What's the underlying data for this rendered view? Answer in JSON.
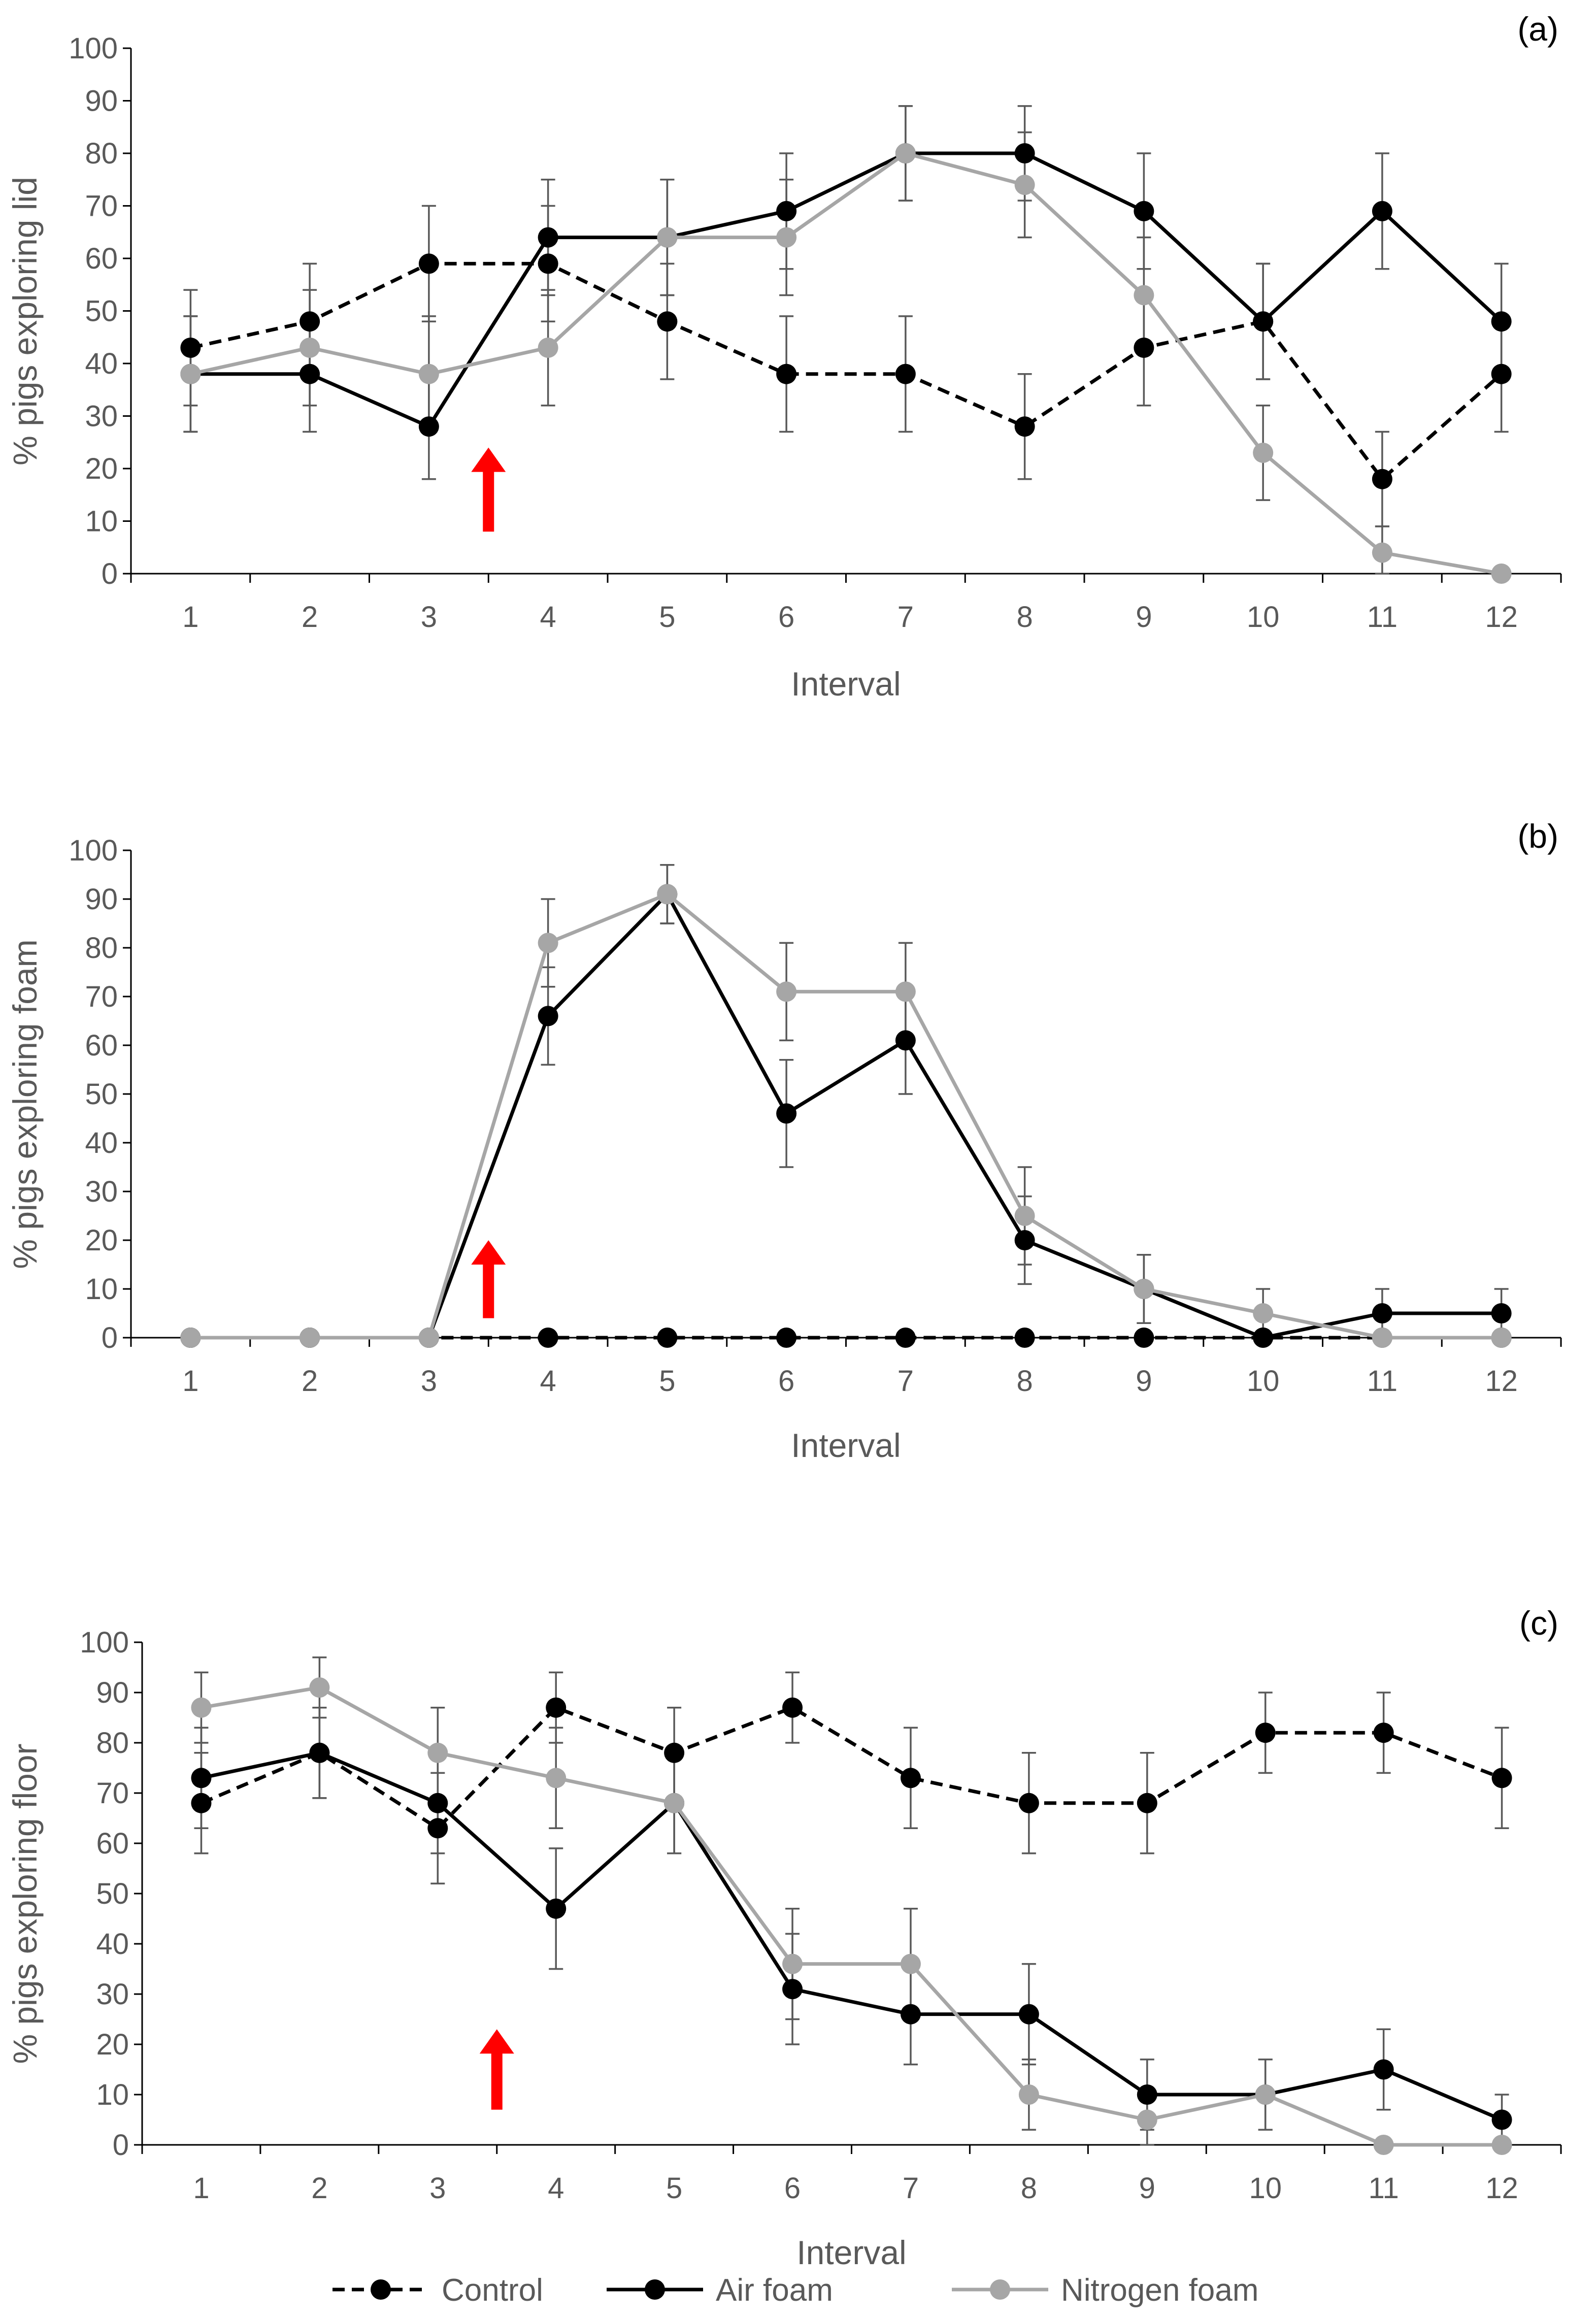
{
  "legend": [
    {
      "key": "control",
      "label": "Control"
    },
    {
      "key": "air",
      "label": "Air foam"
    },
    {
      "key": "nitrogen",
      "label": "Nitrogen foam"
    }
  ],
  "styles": {
    "control": {
      "color": "#000000",
      "dash": true
    },
    "air": {
      "color": "#000000",
      "dash": false
    },
    "nitrogen": {
      "color": "#a6a6a6",
      "dash": false
    },
    "errorbar_color": "#595959",
    "axis_color": "#000000",
    "arrow_color": "#ff0000"
  },
  "chart_data": [
    {
      "type": "line",
      "panel_label": "(a)",
      "title": "",
      "xlabel": "Interval",
      "ylabel": "%  pigs exploring lid",
      "categories": [
        "1",
        "2",
        "3",
        "4",
        "5",
        "6",
        "7",
        "8",
        "9",
        "10",
        "11",
        "12"
      ],
      "yticks": [
        "0",
        "10",
        "20",
        "30",
        "40",
        "50",
        "60",
        "70",
        "80",
        "90",
        "100"
      ],
      "ylim": [
        0,
        100
      ],
      "arrow_x": 3.5,
      "arrow_y": [
        8,
        24
      ],
      "series": [
        {
          "key": "control",
          "name": "Control",
          "values": [
            43,
            48,
            59,
            59,
            48,
            38,
            38,
            28,
            43,
            48,
            18,
            38
          ],
          "errors": [
            11,
            11,
            11,
            11,
            11,
            11,
            11,
            10,
            11,
            11,
            9,
            11
          ]
        },
        {
          "key": "air",
          "name": "Air foam",
          "values": [
            38,
            38,
            28,
            64,
            64,
            69,
            80,
            80,
            69,
            48,
            69,
            48
          ],
          "errors": [
            11,
            11,
            10,
            11,
            11,
            11,
            9,
            9,
            11,
            11,
            11,
            11
          ]
        },
        {
          "key": "nitrogen",
          "name": "Nitrogen foam",
          "values": [
            38,
            43,
            38,
            43,
            64,
            64,
            80,
            74,
            53,
            23,
            4,
            0
          ],
          "errors": [
            11,
            11,
            11,
            11,
            11,
            11,
            9,
            10,
            11,
            9,
            5,
            0
          ]
        }
      ]
    },
    {
      "type": "line",
      "panel_label": "(b)",
      "title": "",
      "xlabel": "Interval",
      "ylabel": "% pigs exploring foam",
      "categories": [
        "1",
        "2",
        "3",
        "4",
        "5",
        "6",
        "7",
        "8",
        "9",
        "10",
        "11",
        "12"
      ],
      "yticks": [
        "0",
        "10",
        "20",
        "30",
        "40",
        "50",
        "60",
        "70",
        "80",
        "90",
        "100"
      ],
      "ylim": [
        0,
        100
      ],
      "arrow_x": 3.5,
      "arrow_y": [
        4,
        20
      ],
      "series": [
        {
          "key": "control",
          "name": "Control",
          "values": [
            0,
            0,
            0,
            0,
            0,
            0,
            0,
            0,
            0,
            0,
            0,
            0
          ],
          "errors": [
            0,
            0,
            0,
            0,
            0,
            0,
            0,
            0,
            0,
            0,
            0,
            0
          ]
        },
        {
          "key": "air",
          "name": "Air foam",
          "values": [
            0,
            0,
            0,
            66,
            91,
            46,
            61,
            20,
            10,
            0,
            5,
            5
          ],
          "errors": [
            0,
            0,
            0,
            10,
            6,
            11,
            11,
            9,
            7,
            0,
            5,
            5
          ]
        },
        {
          "key": "nitrogen",
          "name": "Nitrogen foam",
          "values": [
            0,
            0,
            0,
            81,
            91,
            71,
            71,
            25,
            10,
            5,
            0,
            0
          ],
          "errors": [
            0,
            0,
            0,
            9,
            6,
            10,
            10,
            10,
            7,
            5,
            0,
            0
          ]
        }
      ]
    },
    {
      "type": "line",
      "panel_label": "(c)",
      "title": "",
      "xlabel": "Interval",
      "ylabel": "% pigs exploring floor",
      "categories": [
        "1",
        "2",
        "3",
        "4",
        "5",
        "6",
        "7",
        "8",
        "9",
        "10",
        "11",
        "12"
      ],
      "yticks": [
        "0",
        "10",
        "20",
        "30",
        "40",
        "50",
        "60",
        "70",
        "80",
        "90",
        "100"
      ],
      "ylim": [
        0,
        100
      ],
      "arrow_x": 3.5,
      "arrow_y": [
        7,
        23
      ],
      "series": [
        {
          "key": "control",
          "name": "Control",
          "values": [
            68,
            78,
            63,
            87,
            78,
            87,
            73,
            68,
            68,
            82,
            82,
            73
          ],
          "errors": [
            10,
            9,
            11,
            7,
            9,
            7,
            10,
            10,
            10,
            8,
            8,
            10
          ]
        },
        {
          "key": "air",
          "name": "Air foam",
          "values": [
            73,
            78,
            68,
            47,
            68,
            31,
            26,
            26,
            10,
            10,
            15,
            5
          ],
          "errors": [
            10,
            9,
            10,
            12,
            10,
            11,
            10,
            10,
            7,
            7,
            8,
            5
          ]
        },
        {
          "key": "nitrogen",
          "name": "Nitrogen foam",
          "values": [
            87,
            91,
            78,
            73,
            68,
            36,
            36,
            10,
            5,
            10,
            0,
            0
          ],
          "errors": [
            7,
            6,
            9,
            10,
            10,
            11,
            11,
            7,
            5,
            7,
            0,
            0
          ]
        }
      ]
    }
  ]
}
